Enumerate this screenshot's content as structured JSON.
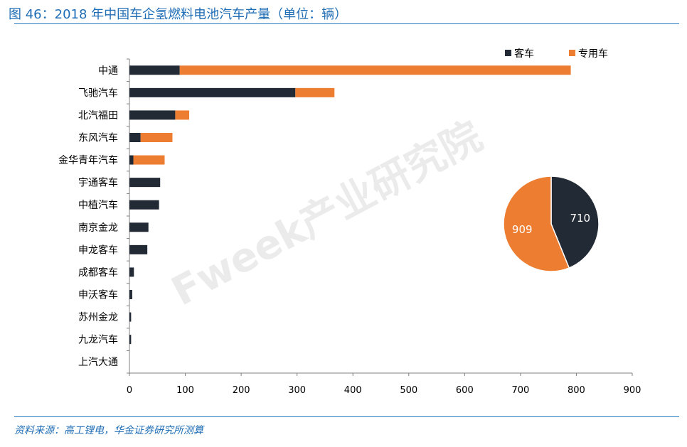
{
  "figure": {
    "title": "图 46：2018 年中国车企氢燃料电池汽车产量（单位：辆）",
    "source": "资料来源：高工锂电，华金证券研究所测算",
    "watermark": "Fweek产业研究院"
  },
  "colors": {
    "bus": "#222a35",
    "special": "#ed7d31",
    "axis": "#7f7f7f",
    "accent": "#1f6db5"
  },
  "chart_data": [
    {
      "type": "bar",
      "orientation": "horizontal",
      "stacked": true,
      "categories": [
        "中通",
        "飞驰汽车",
        "北汽福田",
        "东风汽车",
        "金华青年汽车",
        "宇通客车",
        "中植汽车",
        "南京金龙",
        "申龙客车",
        "成都客车",
        "申沃客车",
        "苏州金龙",
        "九龙汽车",
        "上汽大通"
      ],
      "series": [
        {
          "name": "客车",
          "values": [
            90,
            297,
            82,
            20,
            7,
            55,
            53,
            34,
            32,
            8,
            5,
            3,
            3,
            0
          ]
        },
        {
          "name": "专用车",
          "values": [
            700,
            70,
            25,
            57,
            56,
            0,
            0,
            0,
            0,
            0,
            0,
            0,
            0,
            0
          ]
        }
      ],
      "xlim": [
        0,
        900
      ],
      "xticks": [
        0,
        100,
        200,
        300,
        400,
        500,
        600,
        700,
        800,
        900
      ],
      "legend": "top-right",
      "grid": false
    },
    {
      "type": "pie",
      "values": [
        710,
        909
      ],
      "labels": [
        "710",
        "909"
      ],
      "series_names": [
        "客车",
        "专用车"
      ]
    }
  ]
}
